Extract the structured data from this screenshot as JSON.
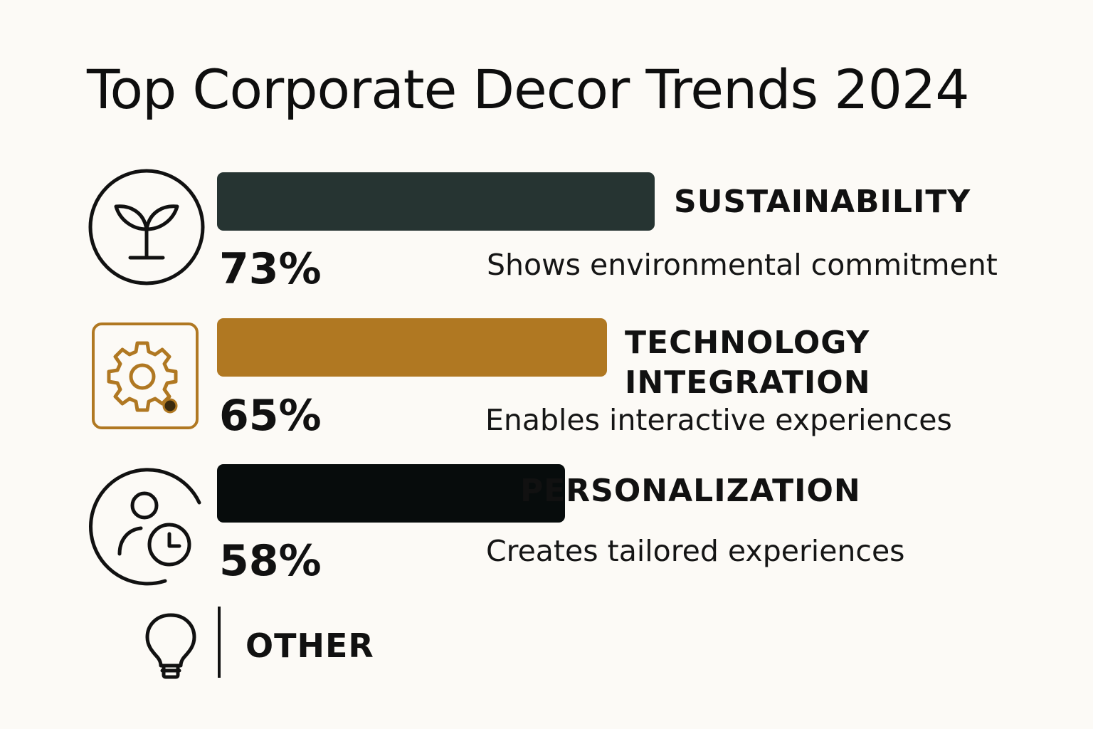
{
  "chart_data": {
    "type": "bar",
    "orientation": "horizontal",
    "title": "Top Corporate Decor Trends 2024",
    "xlim": [
      0,
      100
    ],
    "grid": false,
    "legend": "none",
    "items": [
      {
        "category": "SUSTAINABILITY",
        "value": 73,
        "value_label": "73%",
        "description": "Shows environmental commitment",
        "color": "#263432",
        "icon": "sprout-icon"
      },
      {
        "category": "TECHNOLOGY\nINTEGRATION",
        "value": 65,
        "value_label": "65%",
        "description": "Enables interactive experiences",
        "color": "#b07822",
        "icon": "gear-icon"
      },
      {
        "category": "PERSONALIZATION",
        "value": 58,
        "value_label": "58%",
        "description": "Creates tailored experiences",
        "color": "#070c0c",
        "icon": "person-clock-icon"
      }
    ],
    "other": {
      "label": "OTHER",
      "icon": "lightbulb-icon"
    }
  }
}
